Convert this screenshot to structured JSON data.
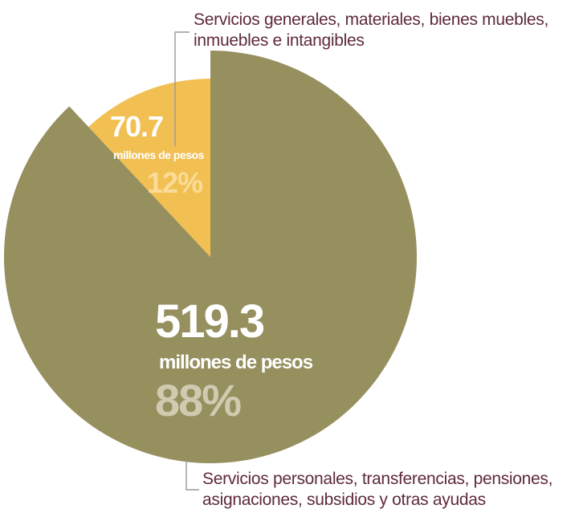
{
  "chart_data": {
    "type": "pie",
    "title": "",
    "slices": [
      {
        "label_lines": [
          "Servicios personales, transferencias, pensiones,",
          "asignaciones, subsidios y otras ayudas"
        ],
        "value": 519.3,
        "value_text": "519.3",
        "unit_text": "millones de pesos",
        "percent_text": "88%",
        "color": "#968f5e"
      },
      {
        "label_lines": [
          "Servicios generales, materiales, bienes muebles,",
          "inmuebles e intangibles"
        ],
        "value": 70.7,
        "value_text": "70.7",
        "unit_text": "millones de pesos",
        "percent_text": "12%",
        "color": "#f2c052"
      }
    ],
    "colors": {
      "value_text": "#ffffff",
      "percent_text": "#d0cab0",
      "small_percent_text": "#fadc98",
      "label_text": "#5e2a3a",
      "leader_line": "#9a9a9a"
    }
  }
}
